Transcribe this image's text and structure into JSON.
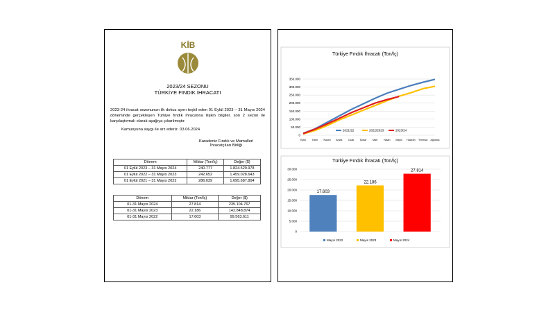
{
  "header": {
    "logo_text": "KİB",
    "season_title": "2023/24 SEZONU",
    "subtitle": "TÜRKİYE FINDIK İHRACATI"
  },
  "paragraph": "2023-24 ihracat sezonunun ilk dokuz ayını teşkil eden 01 Eylül 2023 – 31 Mayıs 2024 döneminde gerçekleşen Türkiye fındık ihracatına ilişkin bilgiler, son 2 sezon ile karşılaştırmalı olarak aşağıya çıkarılmıştır.",
  "greeting": "Kamuoyuna saygı ile arz ederiz. 03.06.2024",
  "signature": [
    "Karadeniz Fındık ve Mamulleri",
    "İhracatçıları Birliği"
  ],
  "tables": [
    {
      "headers": [
        "Dönem",
        "Miktar (Ton/İç)",
        "Değer ($)"
      ],
      "rows": [
        [
          "01 Eylül 2023 – 31 Mayıs 2024",
          "240.777",
          "1.824.529.978"
        ],
        [
          "01 Eylül 2022 – 31 Mayıs 2023",
          "242.652",
          "1.459.028.643"
        ],
        [
          "01 Eylül 2021 – 31 Mayıs 2022",
          "286.039",
          "1.695.687.804"
        ]
      ]
    },
    {
      "headers": [
        "Dönem",
        "Miktar (Ton/İç)",
        "Değer ($)"
      ],
      "rows": [
        [
          "01-31 Mayıs 2024",
          "27.814",
          "235.104.767"
        ],
        [
          "01-31 Mayıs 2023",
          "22.186",
          "142.848.874"
        ],
        [
          "01-31 Mayıs 2022",
          "17.603",
          "99.563.611"
        ]
      ]
    }
  ],
  "chart_data": [
    {
      "type": "line",
      "title": "Türkiye Fındık İhracatı (Ton/İç)",
      "categories": [
        "Eylül",
        "Ekim",
        "Kasım",
        "Aralık",
        "Ocak",
        "Şubat",
        "Mart",
        "Nisan",
        "Mayıs",
        "Haziran",
        "Temmuz",
        "Ağustos"
      ],
      "series": [
        {
          "name": "2021/22",
          "color": "#4a7ebb",
          "values": [
            12000,
            40000,
            80000,
            120000,
            160000,
            195000,
            230000,
            262000,
            286000,
            310000,
            330000,
            348000
          ]
        },
        {
          "name": "2022/2023",
          "color": "#ffc000",
          "values": [
            8000,
            30000,
            60000,
            95000,
            125000,
            155000,
            185000,
            215000,
            243000,
            265000,
            290000,
            305000
          ]
        },
        {
          "name": "2023/24",
          "color": "#e02020",
          "values": [
            10000,
            38000,
            70000,
            105000,
            140000,
            170000,
            200000,
            222000,
            241000,
            null,
            null,
            null
          ]
        }
      ],
      "ylim": [
        0,
        350000
      ],
      "yticks": [
        0,
        {
          "value": 50000,
          "label": "50.000"
        },
        {
          "value": 100000,
          "label": "100.000"
        },
        {
          "value": 150000,
          "label": "150.000"
        },
        {
          "value": 200000,
          "label": "200.000"
        },
        {
          "value": 250000,
          "label": "250.000"
        },
        {
          "value": 300000,
          "label": "300.000"
        },
        {
          "value": 350000,
          "label": "350.000"
        }
      ],
      "grid": true
    },
    {
      "type": "bar",
      "title": "Türkiye Fındık İhracatı (Ton/İç)",
      "categories": [
        "Mayıs 2022",
        "Mayıs 2023",
        "Mayıs 2024"
      ],
      "values": [
        17603,
        22186,
        27814
      ],
      "value_labels": [
        "17.603",
        "22.186",
        "27.814"
      ],
      "colors": [
        "#4f81bd",
        "#ffc000",
        "#ff0000"
      ],
      "ylim": [
        0,
        30000
      ],
      "yticks": [
        0,
        {
          "value": 5000,
          "label": "5.000"
        },
        {
          "value": 10000,
          "label": "10.000"
        },
        {
          "value": 15000,
          "label": "15.000"
        },
        {
          "value": 20000,
          "label": "20.000"
        },
        {
          "value": 25000,
          "label": "25.000"
        },
        {
          "value": 30000,
          "label": "30.000"
        }
      ],
      "grid": true
    }
  ]
}
